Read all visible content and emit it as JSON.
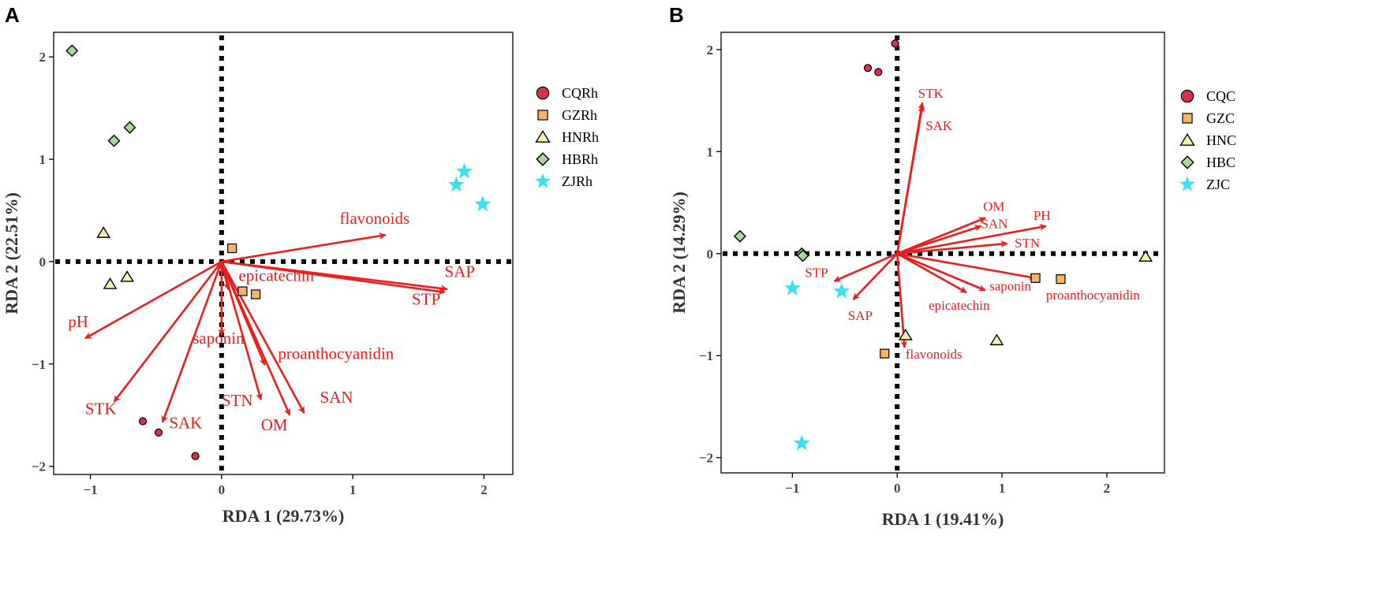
{
  "chart_data": [
    {
      "panel_label": "A",
      "type": "scatter",
      "subtype": "rda-biplot",
      "xlabel": "RDA 1 (29.73%)",
      "ylabel": "RDA 2 (22.51%)",
      "xlim": [
        -1.28,
        2.22
      ],
      "ylim": [
        -2.08,
        2.24
      ],
      "xticks": [
        -1,
        0,
        1,
        2
      ],
      "xtick_labels": [
        "−1",
        "0",
        "1",
        "2"
      ],
      "yticks": [
        -2,
        -1,
        0,
        1,
        2
      ],
      "ytick_labels": [
        "−2",
        "−1",
        "0",
        "1",
        "2"
      ],
      "legend": {
        "position": "right",
        "entries": [
          {
            "label": "CQRh",
            "shape": "circle",
            "color": "#d6334b"
          },
          {
            "label": "GZRh",
            "shape": "square",
            "color": "#f4b26b"
          },
          {
            "label": "HNRh",
            "shape": "triangle",
            "color": "#f8f2ac"
          },
          {
            "label": "HBRh",
            "shape": "diamond",
            "color": "#a9d89b"
          },
          {
            "label": "ZJRh",
            "shape": "star",
            "color": "#3ee0f0"
          }
        ]
      },
      "series": [
        {
          "name": "CQRh",
          "shape": "circle",
          "color": "#d6334b",
          "points": [
            [
              -0.6,
              -1.56
            ],
            [
              -0.48,
              -1.67
            ],
            [
              -0.2,
              -1.9
            ]
          ]
        },
        {
          "name": "GZRh",
          "shape": "square",
          "color": "#f4b26b",
          "points": [
            [
              0.08,
              0.13
            ],
            [
              0.16,
              -0.29
            ],
            [
              0.26,
              -0.32
            ]
          ]
        },
        {
          "name": "HNRh",
          "shape": "triangle",
          "color": "#f8f2ac",
          "points": [
            [
              -0.9,
              0.28
            ],
            [
              -0.72,
              -0.15
            ],
            [
              -0.85,
              -0.22
            ]
          ]
        },
        {
          "name": "HBRh",
          "shape": "diamond",
          "color": "#a9d89b",
          "points": [
            [
              -1.14,
              2.06
            ],
            [
              -0.7,
              1.31
            ],
            [
              -0.82,
              1.18
            ]
          ]
        },
        {
          "name": "ZJRh",
          "shape": "star",
          "color": "#3ee0f0",
          "points": [
            [
              1.85,
              0.88
            ],
            [
              1.79,
              0.75
            ],
            [
              1.99,
              0.56
            ]
          ]
        }
      ],
      "arrows": [
        {
          "name": "flavonoids",
          "x": 1.25,
          "y": 0.26,
          "label_x": 0.9,
          "label_y": 0.37
        },
        {
          "name": "SAP",
          "x": 1.72,
          "y": -0.27,
          "label_x": 1.7,
          "label_y": -0.15
        },
        {
          "name": "STP",
          "x": 1.7,
          "y": -0.3,
          "label_x": 1.45,
          "label_y": -0.42
        },
        {
          "name": "epicatechin",
          "x": 0.05,
          "y": -0.27,
          "label_x": 0.13,
          "label_y": -0.19
        },
        {
          "name": "pH",
          "x": -1.04,
          "y": -0.75,
          "label_x": -1.17,
          "label_y": -0.64
        },
        {
          "name": "saponin",
          "x": 0.0,
          "y": -0.72,
          "label_x": -0.22,
          "label_y": -0.8
        },
        {
          "name": "proanthocyanidin",
          "x": 0.33,
          "y": -1.01,
          "label_x": 0.43,
          "label_y": -0.95
        },
        {
          "name": "STK",
          "x": -0.82,
          "y": -1.37,
          "label_x": -1.04,
          "label_y": -1.49
        },
        {
          "name": "SAK",
          "x": -0.45,
          "y": -1.57,
          "label_x": -0.4,
          "label_y": -1.63
        },
        {
          "name": "STN",
          "x": 0.3,
          "y": -1.35,
          "label_x": 0.0,
          "label_y": -1.41
        },
        {
          "name": "OM",
          "x": 0.52,
          "y": -1.5,
          "label_x": 0.3,
          "label_y": -1.65
        },
        {
          "name": "SAN",
          "x": 0.63,
          "y": -1.48,
          "label_x": 0.75,
          "label_y": -1.38
        }
      ]
    },
    {
      "panel_label": "B",
      "type": "scatter",
      "subtype": "rda-biplot",
      "xlabel": "RDA 1 (19.41%)",
      "ylabel": "RDA 2 (14.29%)",
      "xlim": [
        -1.68,
        2.55
      ],
      "ylim": [
        -2.15,
        2.17
      ],
      "xticks": [
        -1,
        0,
        1,
        2
      ],
      "xtick_labels": [
        "−1",
        "0",
        "1",
        "2"
      ],
      "yticks": [
        -2,
        -1,
        0,
        1,
        2
      ],
      "ytick_labels": [
        "−2",
        "−1",
        "0",
        "1",
        "2"
      ],
      "legend": {
        "position": "right",
        "entries": [
          {
            "label": "CQC",
            "shape": "circle",
            "color": "#d6334b"
          },
          {
            "label": "GZC",
            "shape": "square",
            "color": "#f4b26b"
          },
          {
            "label": "HNC",
            "shape": "triangle",
            "color": "#f8f2ac"
          },
          {
            "label": "HBC",
            "shape": "diamond",
            "color": "#a9d89b"
          },
          {
            "label": "ZJC",
            "shape": "star",
            "color": "#3ee0f0"
          }
        ]
      },
      "series": [
        {
          "name": "CQC",
          "shape": "circle",
          "color": "#d6334b",
          "points": [
            [
              -0.02,
              2.06
            ],
            [
              -0.28,
              1.82
            ],
            [
              -0.18,
              1.78
            ]
          ]
        },
        {
          "name": "GZC",
          "shape": "square",
          "color": "#f4b26b",
          "points": [
            [
              1.32,
              -0.24
            ],
            [
              1.56,
              -0.25
            ],
            [
              -0.12,
              -0.98
            ]
          ]
        },
        {
          "name": "HNC",
          "shape": "triangle",
          "color": "#f8f2ac",
          "points": [
            [
              2.37,
              -0.03
            ],
            [
              0.08,
              -0.8
            ],
            [
              0.95,
              -0.85
            ]
          ]
        },
        {
          "name": "HBC",
          "shape": "diamond",
          "color": "#a9d89b",
          "points": [
            [
              -1.5,
              0.17
            ],
            [
              -0.91,
              0.0
            ],
            [
              -0.9,
              -0.02
            ]
          ]
        },
        {
          "name": "ZJC",
          "shape": "star",
          "color": "#3ee0f0",
          "points": [
            [
              -1.0,
              -0.34
            ],
            [
              -0.53,
              -0.37
            ],
            [
              -0.91,
              -1.86
            ]
          ]
        }
      ],
      "arrows": [
        {
          "name": "STK",
          "x": 0.24,
          "y": 1.48,
          "label_x": 0.2,
          "label_y": 1.53
        },
        {
          "name": "SAK",
          "x": 0.24,
          "y": 1.45,
          "label_x": 0.27,
          "label_y": 1.21
        },
        {
          "name": "OM",
          "x": 0.84,
          "y": 0.35,
          "label_x": 0.82,
          "label_y": 0.42
        },
        {
          "name": "SAN",
          "x": 0.8,
          "y": 0.27,
          "label_x": 0.8,
          "label_y": 0.25
        },
        {
          "name": "PH",
          "x": 1.42,
          "y": 0.27,
          "label_x": 1.3,
          "label_y": 0.33
        },
        {
          "name": "STN",
          "x": 1.05,
          "y": 0.1,
          "label_x": 1.12,
          "label_y": 0.06
        },
        {
          "name": "STP",
          "x": -0.6,
          "y": -0.27,
          "label_x": -0.88,
          "label_y": -0.23
        },
        {
          "name": "SAP",
          "x": -0.42,
          "y": -0.45,
          "label_x": -0.47,
          "label_y": -0.65
        },
        {
          "name": "saponin",
          "x": 0.84,
          "y": -0.36,
          "label_x": 0.88,
          "label_y": -0.36
        },
        {
          "name": "proanthocyanidin",
          "x": 1.32,
          "y": -0.24,
          "label_x": 1.42,
          "label_y": -0.45
        },
        {
          "name": "epicatechin",
          "x": 0.66,
          "y": -0.38,
          "label_x": 0.3,
          "label_y": -0.55
        },
        {
          "name": "flavonoids",
          "x": 0.07,
          "y": -0.92,
          "label_x": 0.08,
          "label_y": -1.03
        }
      ]
    }
  ]
}
